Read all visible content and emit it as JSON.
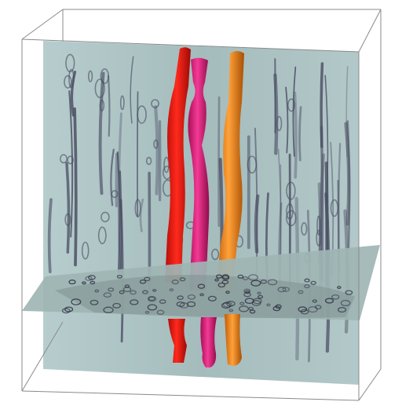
{
  "scene": {
    "background": "#ffffff",
    "box_line_color": "#8a8a8a",
    "slab_color": "#a9c0c1",
    "slab_dark_streak_color": "#4a4d63",
    "floor_color": "#9eb5b4",
    "floor_ring_color": "#2f3243",
    "fibers": [
      {
        "name": "red-fiber",
        "color": "#e8150f",
        "shade": "#b30c08"
      },
      {
        "name": "pink-fiber",
        "color": "#e21a7d",
        "shade": "#a70f57"
      },
      {
        "name": "orange-fiber",
        "color": "#f5820c",
        "shade": "#c25e05"
      }
    ]
  }
}
